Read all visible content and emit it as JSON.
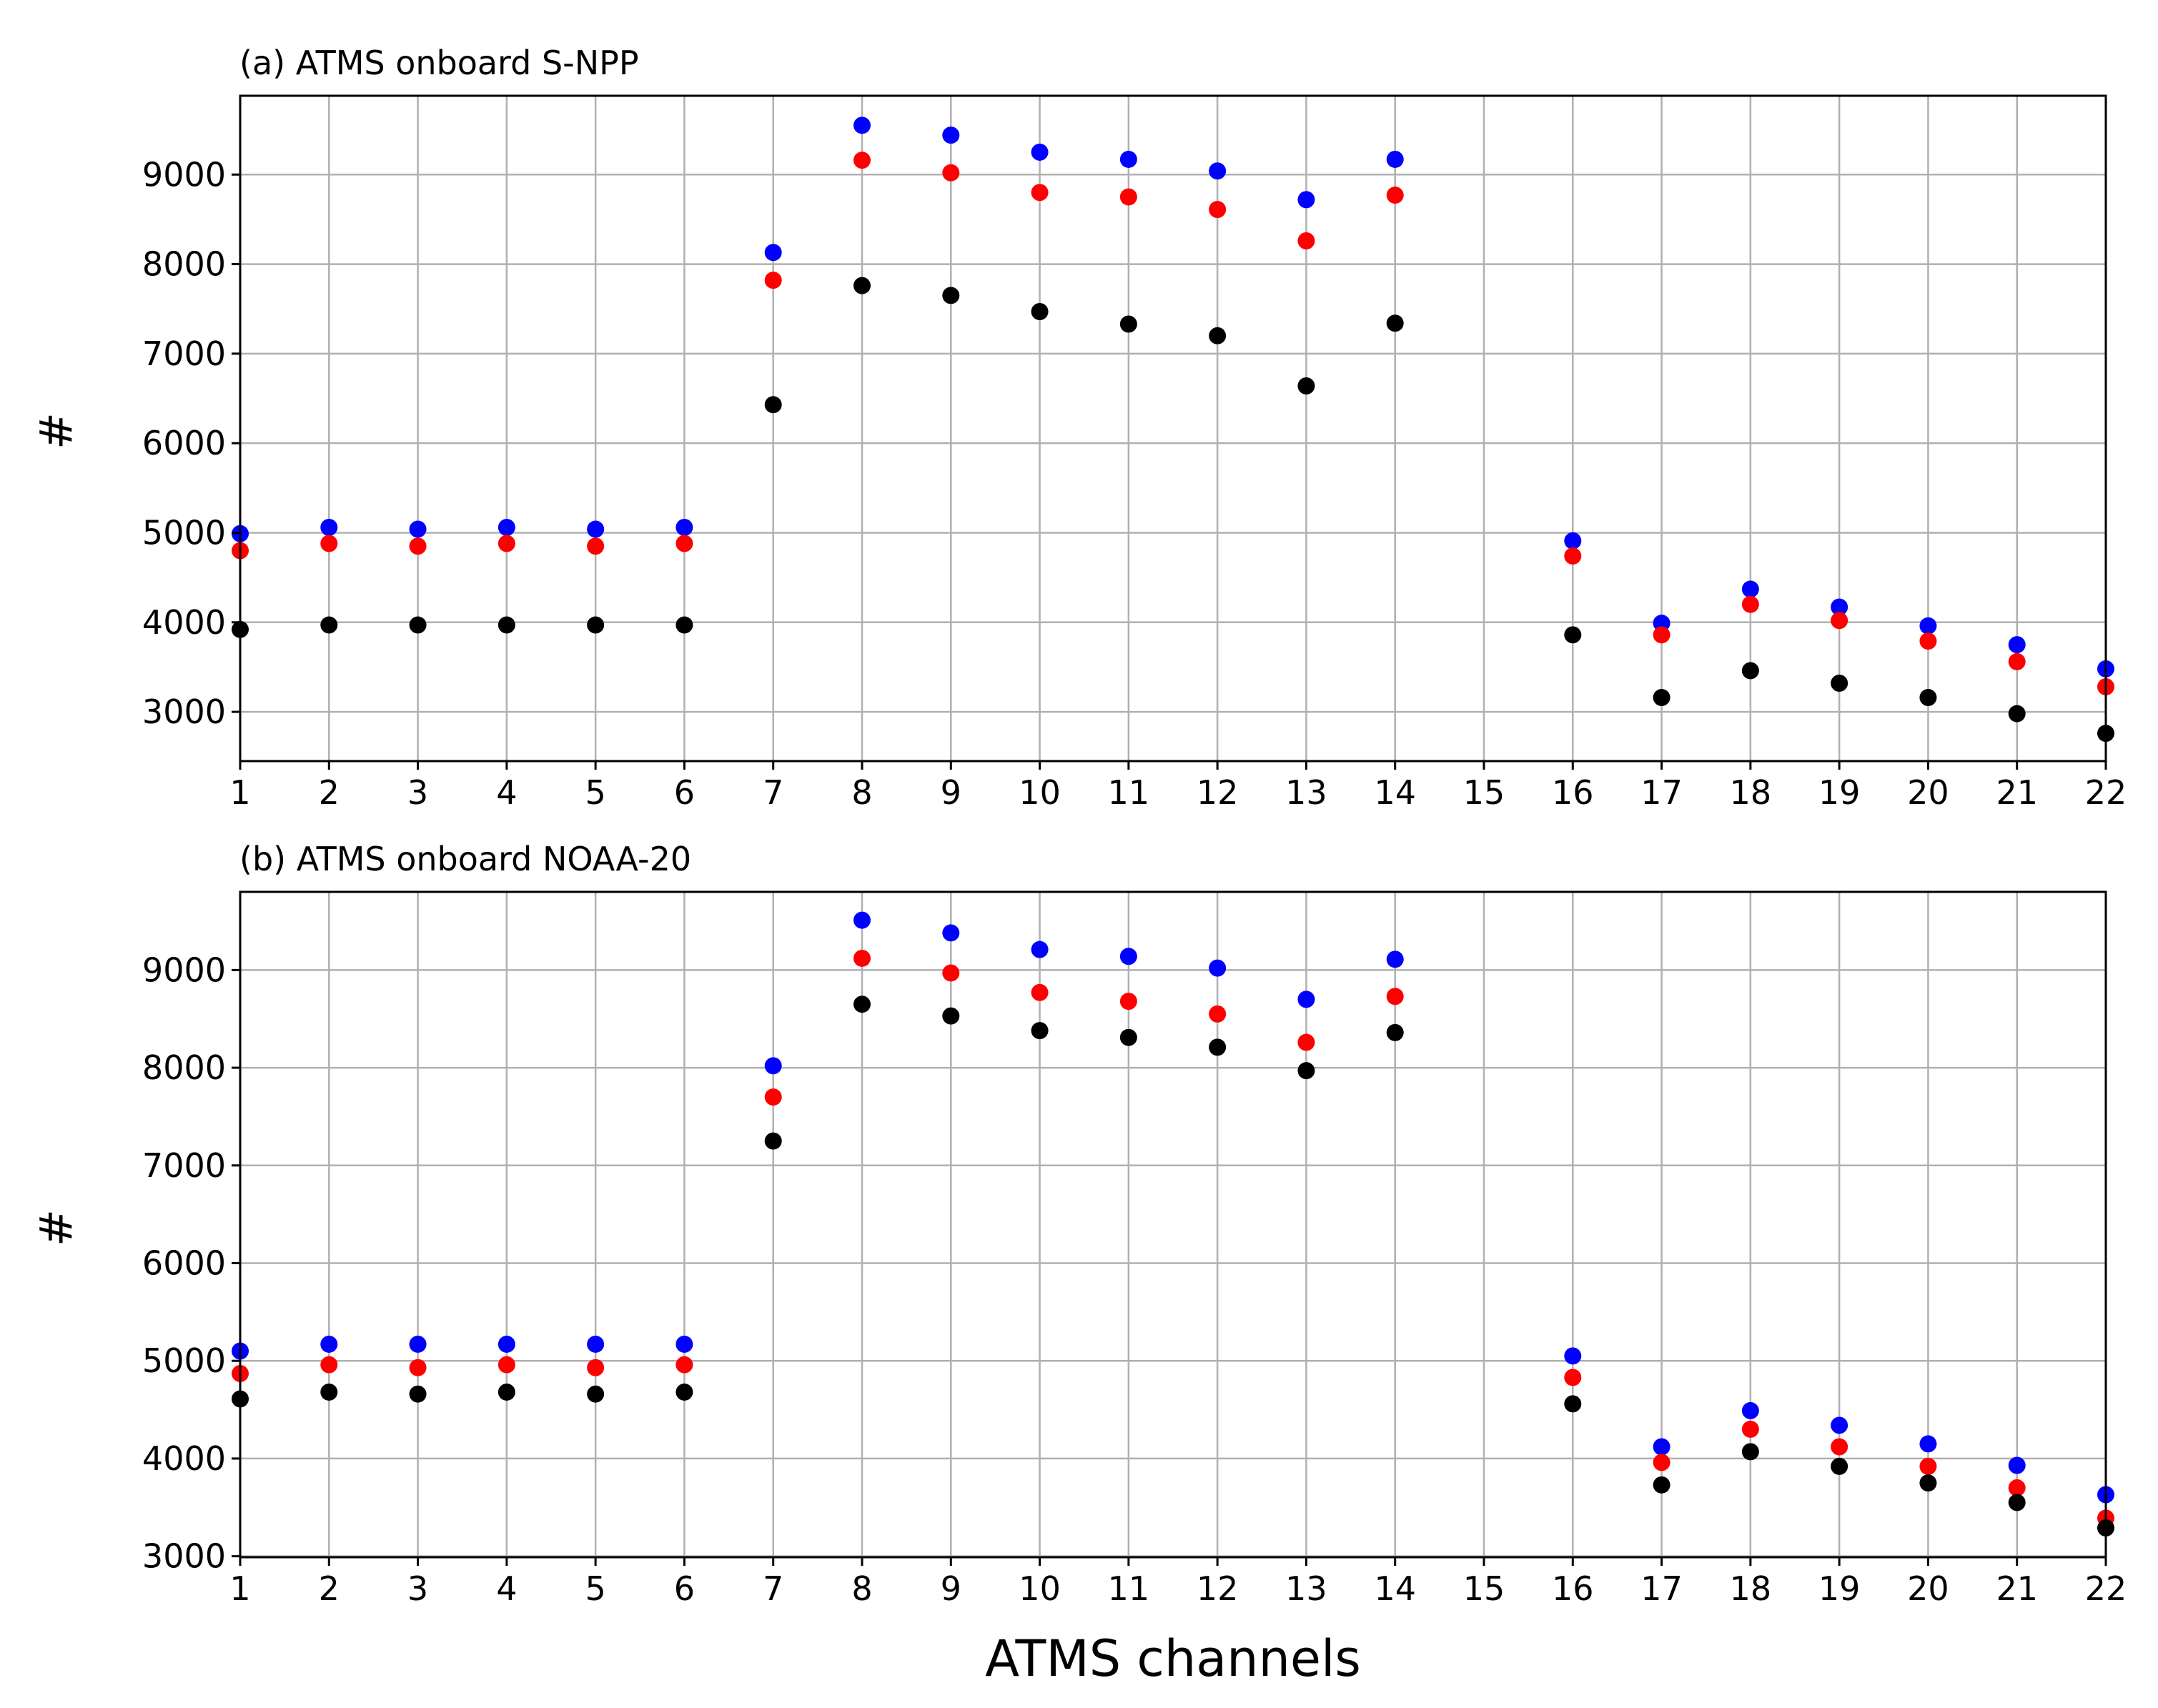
{
  "chart_data": [
    {
      "type": "scatter",
      "title": "(a) ATMS onboard S-NPP",
      "ylabel": "#",
      "xlabel": "",
      "ylim": [
        2450,
        9880
      ],
      "xlim": [
        1,
        22
      ],
      "x_ticks": [
        1,
        2,
        3,
        4,
        5,
        6,
        7,
        8,
        9,
        10,
        11,
        12,
        13,
        14,
        15,
        16,
        17,
        18,
        19,
        20,
        21,
        22
      ],
      "y_ticks": [
        3000,
        4000,
        5000,
        6000,
        7000,
        8000,
        9000
      ],
      "grid": true,
      "series": [
        {
          "name": "blue",
          "color": "#0000ff",
          "x": [
            1,
            2,
            3,
            4,
            5,
            6,
            7,
            8,
            9,
            10,
            11,
            12,
            13,
            14,
            16,
            17,
            18,
            19,
            20,
            21,
            22
          ],
          "values": [
            4990,
            5060,
            5040,
            5060,
            5040,
            5060,
            8130,
            9550,
            9440,
            9250,
            9170,
            9040,
            8720,
            9170,
            4910,
            3990,
            4370,
            4170,
            3960,
            3750,
            3480
          ]
        },
        {
          "name": "red",
          "color": "#ff0000",
          "x": [
            1,
            2,
            3,
            4,
            5,
            6,
            7,
            8,
            9,
            10,
            11,
            12,
            13,
            14,
            16,
            17,
            18,
            19,
            20,
            21,
            22
          ],
          "values": [
            4800,
            4880,
            4850,
            4880,
            4850,
            4880,
            7820,
            9160,
            9020,
            8800,
            8750,
            8610,
            8260,
            8770,
            4740,
            3860,
            4200,
            4020,
            3790,
            3560,
            3280
          ]
        },
        {
          "name": "black",
          "color": "#000000",
          "x": [
            1,
            2,
            3,
            4,
            5,
            6,
            7,
            8,
            9,
            10,
            11,
            12,
            13,
            14,
            16,
            17,
            18,
            19,
            20,
            21,
            22
          ],
          "values": [
            3920,
            3970,
            3970,
            3970,
            3970,
            3970,
            6430,
            7760,
            7650,
            7470,
            7330,
            7200,
            6640,
            7340,
            3860,
            3160,
            3460,
            3320,
            3160,
            2980,
            2760
          ]
        }
      ]
    },
    {
      "type": "scatter",
      "title": "(b) ATMS onboard NOAA-20",
      "ylabel": "#",
      "xlabel": "ATMS channels",
      "ylim": [
        2990,
        9800
      ],
      "xlim": [
        1,
        22
      ],
      "x_ticks": [
        1,
        2,
        3,
        4,
        5,
        6,
        7,
        8,
        9,
        10,
        11,
        12,
        13,
        14,
        15,
        16,
        17,
        18,
        19,
        20,
        21,
        22
      ],
      "y_ticks": [
        3000,
        4000,
        5000,
        6000,
        7000,
        8000,
        9000
      ],
      "grid": true,
      "series": [
        {
          "name": "blue",
          "color": "#0000ff",
          "x": [
            1,
            2,
            3,
            4,
            5,
            6,
            7,
            8,
            9,
            10,
            11,
            12,
            13,
            14,
            16,
            17,
            18,
            19,
            20,
            21,
            22
          ],
          "values": [
            5100,
            5170,
            5170,
            5170,
            5170,
            5170,
            8020,
            9510,
            9380,
            9210,
            9140,
            9020,
            8700,
            9110,
            5050,
            4120,
            4490,
            4340,
            4150,
            3930,
            3630
          ]
        },
        {
          "name": "red",
          "color": "#ff0000",
          "x": [
            1,
            2,
            3,
            4,
            5,
            6,
            7,
            8,
            9,
            10,
            11,
            12,
            13,
            14,
            16,
            17,
            18,
            19,
            20,
            21,
            22
          ],
          "values": [
            4870,
            4960,
            4930,
            4960,
            4930,
            4960,
            7700,
            9120,
            8970,
            8770,
            8680,
            8550,
            8260,
            8730,
            4830,
            3960,
            4300,
            4120,
            3920,
            3700,
            3390
          ]
        },
        {
          "name": "black",
          "color": "#000000",
          "x": [
            1,
            2,
            3,
            4,
            5,
            6,
            7,
            8,
            9,
            10,
            11,
            12,
            13,
            14,
            16,
            17,
            18,
            19,
            20,
            21,
            22
          ],
          "values": [
            4610,
            4680,
            4660,
            4680,
            4660,
            4680,
            7250,
            8650,
            8530,
            8380,
            8310,
            8210,
            7970,
            8360,
            4560,
            3730,
            4070,
            3920,
            3750,
            3550,
            3290
          ]
        }
      ]
    }
  ]
}
